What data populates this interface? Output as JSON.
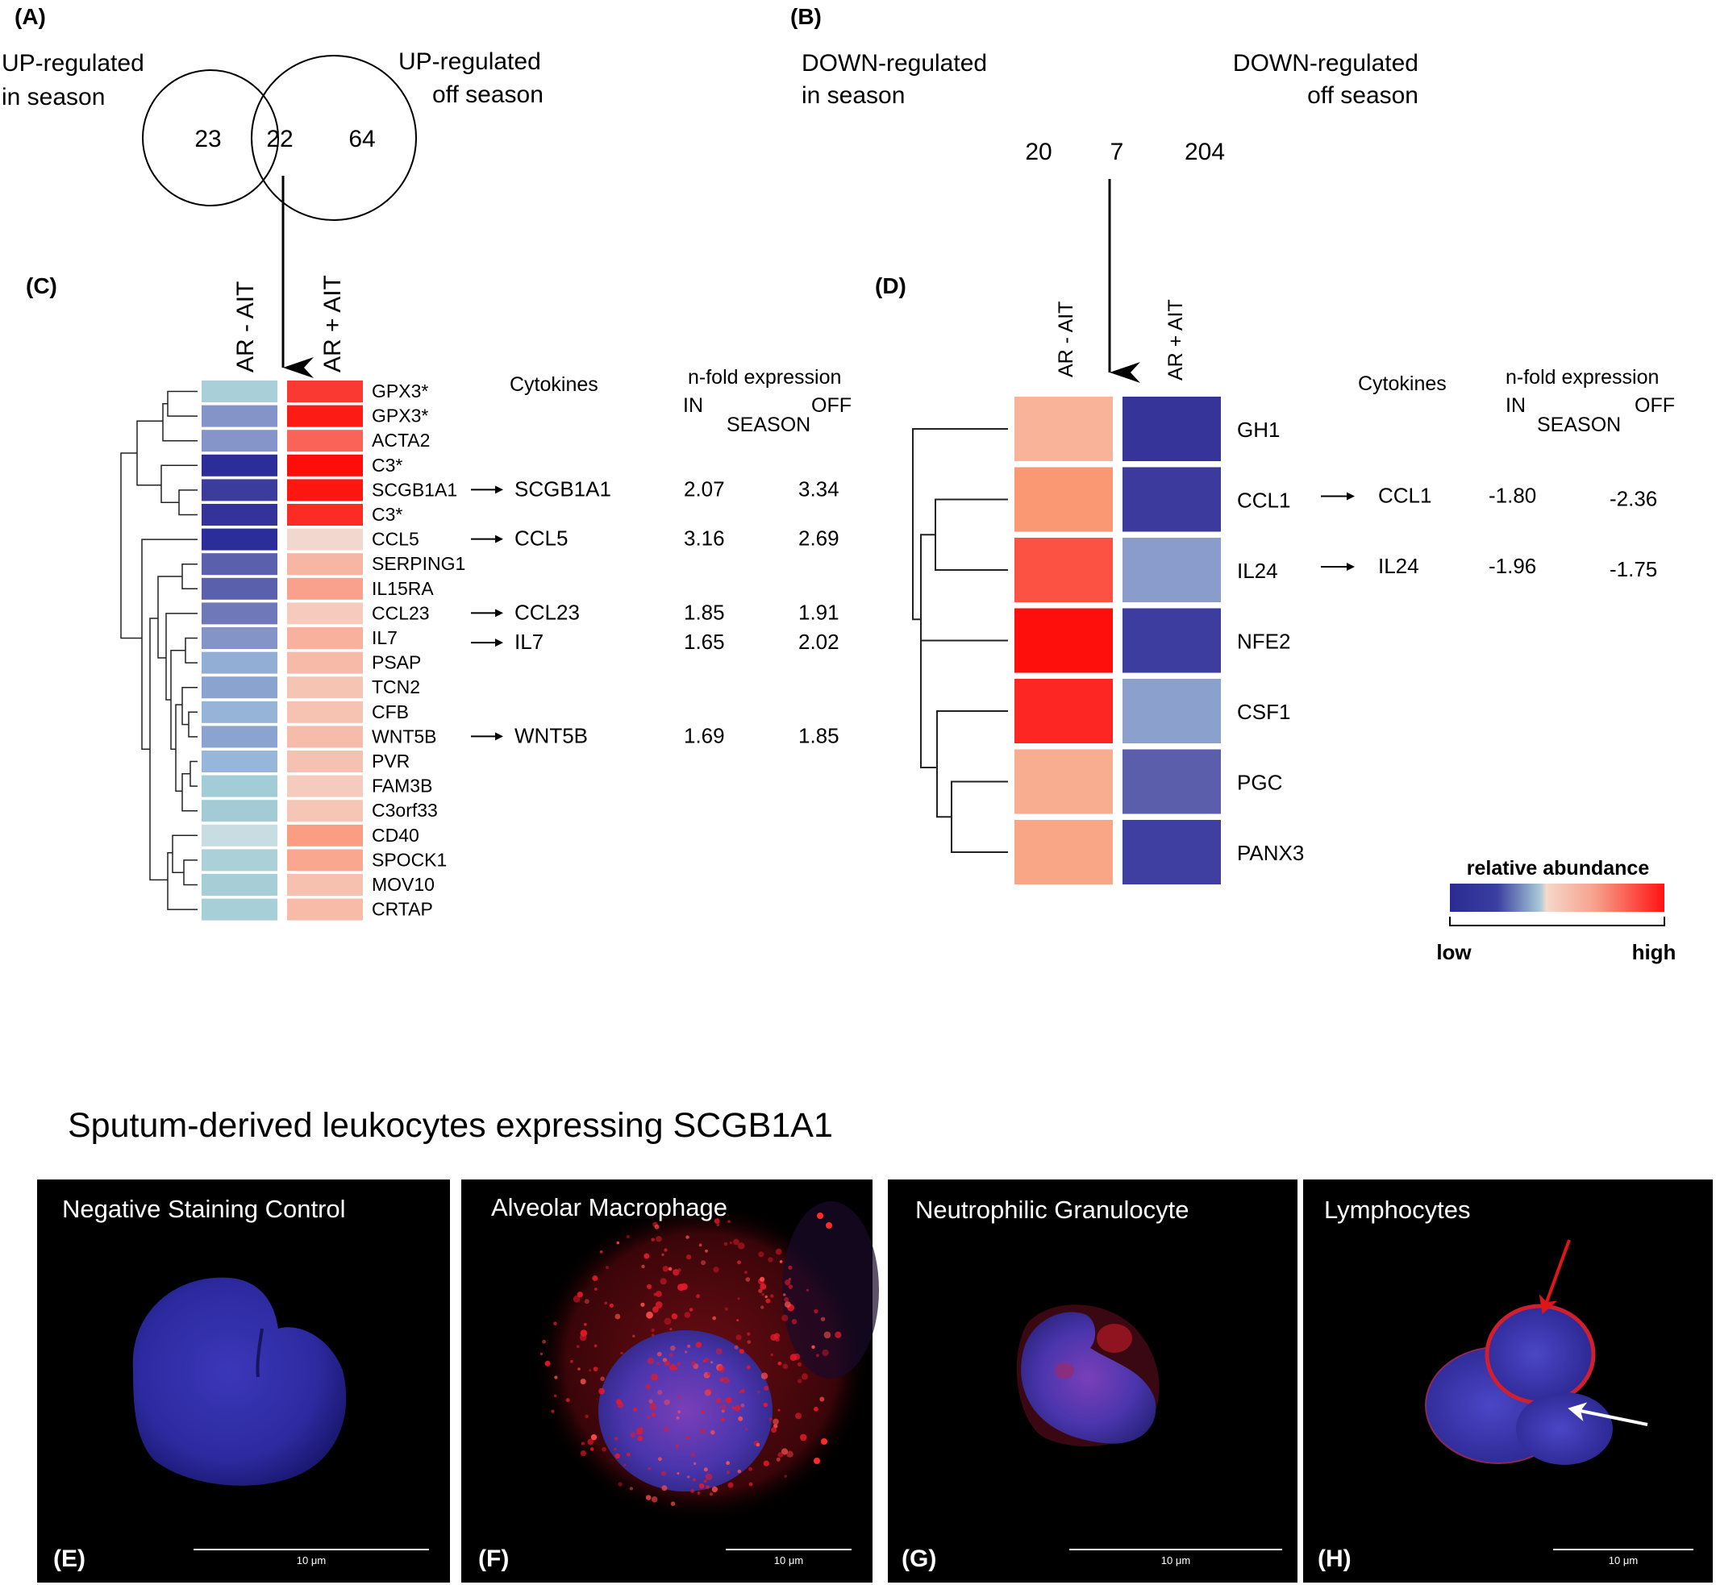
{
  "panels": {
    "A": {
      "label": "(A)",
      "left_set": [
        "UP-regulated",
        "in season"
      ],
      "right_set": [
        "UP-regulated",
        "off season"
      ],
      "counts": {
        "left_only": "23",
        "overlap": "22",
        "right_only": "64"
      }
    },
    "B": {
      "label": "(B)",
      "left_set": [
        "DOWN-regulated",
        "in season"
      ],
      "right_set": [
        "DOWN-regulated",
        "off season"
      ],
      "counts": {
        "left_only": "20",
        "overlap": "7",
        "right_only": "204"
      }
    },
    "C": {
      "label": "(C)",
      "col_headers": [
        "AR - AIT",
        "AR + AIT"
      ],
      "genes": [
        "GPX3*",
        "GPX3*",
        "ACTA2",
        "C3*",
        "SCGB1A1",
        "C3*",
        "CCL5",
        "SERPING1",
        "IL15RA",
        "CCL23",
        "IL7",
        "PSAP",
        "TCN2",
        "CFB",
        "WNT5B",
        "PVR",
        "FAM3B",
        "C3orf33",
        "CD40",
        "SPOCK1",
        "MOV10",
        "CRTAP"
      ],
      "left_colors": [
        "#a9cfd8",
        "#8494c8",
        "#8595c9",
        "#2c2d98",
        "#3b3c9c",
        "#333399",
        "#2b2d9a",
        "#5a5fae",
        "#5b60ad",
        "#6f79ba",
        "#8594c6",
        "#92aed5",
        "#8ba4cf",
        "#95b4d8",
        "#8ba3d1",
        "#96b6da",
        "#a2ccd6",
        "#a3cbd6",
        "#c7dde2",
        "#abd0d7",
        "#a7ced6",
        "#a7cfd7"
      ],
      "right_colors": [
        "#fa3a32",
        "#fd1b16",
        "#fa6458",
        "#fe0e0b",
        "#fe1711",
        "#fc2b23",
        "#f2d7ce",
        "#f7b6a3",
        "#f9a18a",
        "#f6cbbd",
        "#f8b19c",
        "#f5bba8",
        "#f5c4b3",
        "#f6c3b2",
        "#f7bca9",
        "#f5c2b2",
        "#f4cbbc",
        "#f5c6b6",
        "#fa9d82",
        "#f9a88f",
        "#f6c1af",
        "#f7bba8"
      ],
      "cytokines_header": "Cytokines",
      "nfold_header": "n-fold expression",
      "in_label": "IN",
      "season_label": "SEASON",
      "off_label": "OFF",
      "cytokines": [
        {
          "name": "SCGB1A1",
          "in": "2.07",
          "off": "3.34"
        },
        {
          "name": "CCL5",
          "in": "3.16",
          "off": "2.69"
        },
        {
          "name": "CCL23",
          "in": "1.85",
          "off": "1.91"
        },
        {
          "name": "IL7",
          "in": "1.65",
          "off": "2.02"
        },
        {
          "name": "WNT5B",
          "in": "1.69",
          "off": "1.85"
        }
      ]
    },
    "D": {
      "label": "(D)",
      "col_headers": [
        "AR - AIT",
        "AR + AIT"
      ],
      "genes": [
        "GH1",
        "CCL1",
        "IL24",
        "NFE2",
        "CSF1",
        "PGC",
        "PANX3"
      ],
      "left_colors": [
        "#f8b398",
        "#fa9873",
        "#fb5244",
        "#fe0f0c",
        "#fd2622",
        "#f8ad91",
        "#f9a686"
      ],
      "right_colors": [
        "#363499",
        "#3c3a9d",
        "#8a9ccb",
        "#3d3d9f",
        "#8ba0cc",
        "#5b5fab",
        "#3f3ea1"
      ],
      "cytokines_header": "Cytokines",
      "nfold_header": "n-fold expression",
      "in_label": "IN",
      "season_label": "SEASON",
      "off_label": "OFF",
      "cytokines": [
        {
          "name": "CCL1",
          "in": "-1.80",
          "off": "-2.36"
        },
        {
          "name": "IL24",
          "in": "-1.96",
          "off": "-1.75"
        }
      ],
      "legend": {
        "title": "relative abundance",
        "low": "low",
        "high": "high",
        "colors": [
          "#2b2a93",
          "#3b3fa0",
          "#a8c8d8",
          "#f5d8cc",
          "#f6a08a",
          "#ff1212"
        ]
      }
    }
  },
  "micrographs": {
    "title": "Sputum-derived leukocytes expressing SCGB1A1",
    "scale_text": "10 μm",
    "panels": [
      {
        "tag": "(E)",
        "label": "Negative Staining Control"
      },
      {
        "tag": "(F)",
        "label": "Alveolar Macrophage"
      },
      {
        "tag": "(G)",
        "label": "Neutrophilic Granulocyte"
      },
      {
        "tag": "(H)",
        "label": "Lymphocytes"
      }
    ]
  }
}
